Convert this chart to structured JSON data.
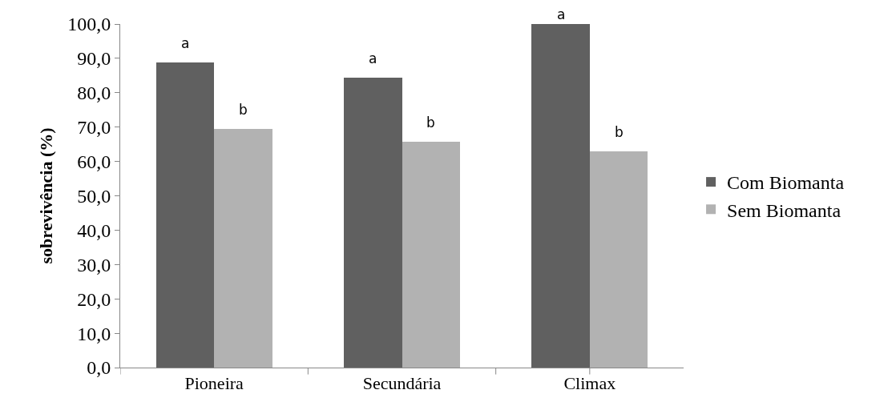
{
  "chart_data": {
    "type": "bar",
    "ylabel": "sobrevivência (%)",
    "categories": [
      "Pioneira",
      "Secundária",
      "Climax"
    ],
    "series": [
      {
        "name": "Com Biomanta",
        "color": "#606060",
        "values": [
          88.8,
          84.5,
          100.0
        ]
      },
      {
        "name": "Sem Biomanta",
        "color": "#b2b2b2",
        "values": [
          69.4,
          65.8,
          63.0
        ]
      }
    ],
    "ylim": [
      0,
      100
    ],
    "yticks": [
      {
        "value": 0,
        "label": "0,0"
      },
      {
        "value": 10,
        "label": "10,0"
      },
      {
        "value": 20,
        "label": "20,0"
      },
      {
        "value": 30,
        "label": "30,0"
      },
      {
        "value": 40,
        "label": "40,0"
      },
      {
        "value": 50,
        "label": "50,0"
      },
      {
        "value": 60,
        "label": "60,0"
      },
      {
        "value": 70,
        "label": "70,0"
      },
      {
        "value": 80,
        "label": "80,0"
      },
      {
        "value": 90,
        "label": "90,0"
      },
      {
        "value": 100,
        "label": "100,0"
      }
    ],
    "annotations": [
      {
        "text": "a",
        "x": "Pioneira",
        "y": 88.8
      },
      {
        "text": "b",
        "x": "Pioneira",
        "y": 69.4
      },
      {
        "text": "a",
        "x": "Secundária",
        "y": 84.5
      },
      {
        "text": "b",
        "x": "Secundária",
        "y": 65.8
      },
      {
        "text": "a",
        "x": "Climax",
        "y": 100.0
      },
      {
        "text": "b",
        "x": "Climax",
        "y": 63.0
      }
    ],
    "grid": false,
    "legend": "right"
  }
}
